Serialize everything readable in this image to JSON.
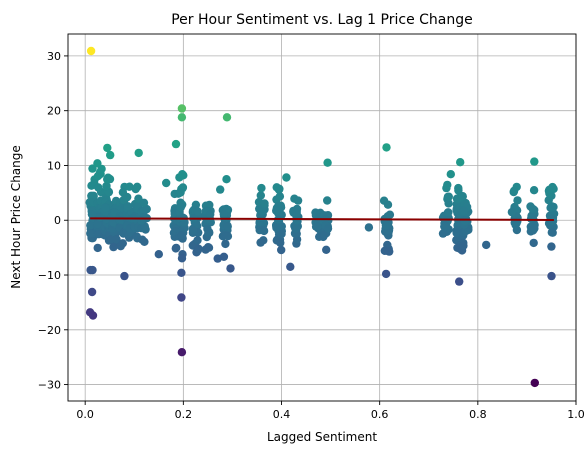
{
  "chart_data": {
    "type": "scatter",
    "title": "Per Hour Sentiment vs. Lag 1 Price Change",
    "xlabel": "Lagged Sentiment",
    "ylabel": "Next Hour Price Change",
    "xlim": [
      -0.035,
      1.0
    ],
    "ylim": [
      -33,
      34
    ],
    "xticks": [
      0.0,
      0.2,
      0.4,
      0.6,
      0.8,
      1.0
    ],
    "xtick_labels": [
      "0.0",
      "0.2",
      "0.4",
      "0.6",
      "0.8",
      "1.0"
    ],
    "yticks": [
      -30,
      -20,
      -10,
      0,
      10,
      20,
      30
    ],
    "ytick_labels": [
      "−30",
      "−20",
      "−10",
      "0",
      "10",
      "20",
      "30"
    ],
    "grid": true,
    "colormap": "viridis",
    "color_by": "y",
    "trend_line": {
      "x": [
        0.01,
        0.955
      ],
      "y": [
        0.35,
        0.05
      ],
      "color": "#8b0000"
    },
    "outliers": [
      {
        "x": 0.012,
        "y": 30.9
      },
      {
        "x": 0.197,
        "y": 20.4
      },
      {
        "x": 0.197,
        "y": 18.8
      },
      {
        "x": 0.289,
        "y": 18.8
      },
      {
        "x": 0.185,
        "y": 13.9
      },
      {
        "x": 0.614,
        "y": 13.3
      },
      {
        "x": 0.045,
        "y": 13.2
      },
      {
        "x": 0.109,
        "y": 12.3
      },
      {
        "x": 0.051,
        "y": 11.9
      },
      {
        "x": 0.915,
        "y": 10.7
      },
      {
        "x": 0.764,
        "y": 10.6
      },
      {
        "x": 0.494,
        "y": 10.5
      },
      {
        "x": 0.025,
        "y": 10.4
      },
      {
        "x": 0.745,
        "y": 8.4
      },
      {
        "x": 0.41,
        "y": 7.8
      },
      {
        "x": 0.288,
        "y": 7.5
      },
      {
        "x": 0.165,
        "y": 6.8
      },
      {
        "x": 0.275,
        "y": 5.6
      },
      {
        "x": 0.493,
        "y": 3.6
      },
      {
        "x": 0.578,
        "y": -1.3
      },
      {
        "x": 0.817,
        "y": -4.5
      },
      {
        "x": 0.491,
        "y": -5.4
      },
      {
        "x": 0.15,
        "y": -6.2
      },
      {
        "x": 0.27,
        "y": -7.0
      },
      {
        "x": 0.296,
        "y": -8.8
      },
      {
        "x": 0.418,
        "y": -8.5
      },
      {
        "x": 0.011,
        "y": -9.1
      },
      {
        "x": 0.015,
        "y": -9.1
      },
      {
        "x": 0.196,
        "y": -9.6
      },
      {
        "x": 0.613,
        "y": -9.8
      },
      {
        "x": 0.08,
        "y": -10.2
      },
      {
        "x": 0.95,
        "y": -10.2
      },
      {
        "x": 0.762,
        "y": -11.2
      },
      {
        "x": 0.014,
        "y": -13.1
      },
      {
        "x": 0.196,
        "y": -14.1
      },
      {
        "x": 0.01,
        "y": -16.8
      },
      {
        "x": 0.016,
        "y": -17.4
      },
      {
        "x": 0.197,
        "y": -24.1
      },
      {
        "x": 0.916,
        "y": -29.7
      }
    ],
    "clusters": [
      {
        "x": 0.015,
        "ymin": -6.5,
        "ymax": 9.5,
        "n": 45
      },
      {
        "x": 0.03,
        "ymin": -5.5,
        "ymax": 9.5,
        "n": 40
      },
      {
        "x": 0.045,
        "ymin": -5.5,
        "ymax": 8.0,
        "n": 40
      },
      {
        "x": 0.06,
        "ymin": -5.0,
        "ymax": 5.0,
        "n": 35
      },
      {
        "x": 0.075,
        "ymin": -5.5,
        "ymax": 6.5,
        "n": 35
      },
      {
        "x": 0.09,
        "ymin": -4.5,
        "ymax": 7.5,
        "n": 30
      },
      {
        "x": 0.105,
        "ymin": -3.5,
        "ymax": 6.5,
        "n": 25
      },
      {
        "x": 0.12,
        "ymin": -4.0,
        "ymax": 4.5,
        "n": 20
      },
      {
        "x": 0.185,
        "ymin": -6.0,
        "ymax": 5.5,
        "n": 30
      },
      {
        "x": 0.197,
        "ymin": -7.0,
        "ymax": 9.0,
        "n": 30
      },
      {
        "x": 0.225,
        "ymin": -6.0,
        "ymax": 3.5,
        "n": 30
      },
      {
        "x": 0.25,
        "ymin": -6.0,
        "ymax": 3.0,
        "n": 22
      },
      {
        "x": 0.285,
        "ymin": -7.5,
        "ymax": 4.5,
        "n": 35
      },
      {
        "x": 0.36,
        "ymin": -5.5,
        "ymax": 6.0,
        "n": 30
      },
      {
        "x": 0.395,
        "ymin": -6.0,
        "ymax": 6.5,
        "n": 35
      },
      {
        "x": 0.43,
        "ymin": -6.0,
        "ymax": 4.5,
        "n": 25
      },
      {
        "x": 0.475,
        "ymin": -3.5,
        "ymax": 2.5,
        "n": 20
      },
      {
        "x": 0.49,
        "ymin": -3.5,
        "ymax": 1.5,
        "n": 15
      },
      {
        "x": 0.615,
        "ymin": -6.5,
        "ymax": 4.0,
        "n": 25
      },
      {
        "x": 0.735,
        "ymin": -3.0,
        "ymax": 6.5,
        "n": 25
      },
      {
        "x": 0.762,
        "ymin": -6.0,
        "ymax": 7.0,
        "n": 45
      },
      {
        "x": 0.775,
        "ymin": -5.5,
        "ymax": 4.5,
        "n": 25
      },
      {
        "x": 0.875,
        "ymin": -3.0,
        "ymax": 6.5,
        "n": 20
      },
      {
        "x": 0.91,
        "ymin": -4.5,
        "ymax": 7.0,
        "n": 20
      },
      {
        "x": 0.95,
        "ymin": -5.0,
        "ymax": 6.5,
        "n": 30
      }
    ]
  }
}
